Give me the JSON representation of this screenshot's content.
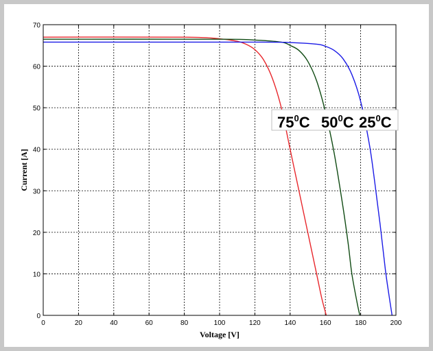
{
  "chart_data": {
    "type": "line",
    "title": "",
    "xlabel": "Voltage [V]",
    "ylabel": "Current [A]",
    "xlim": [
      0,
      200
    ],
    "ylim": [
      0,
      70
    ],
    "xticks": [
      0,
      20,
      40,
      60,
      80,
      100,
      120,
      140,
      160,
      180,
      200
    ],
    "yticks": [
      0,
      10,
      20,
      30,
      40,
      50,
      60,
      70
    ],
    "grid": true,
    "legend": "none",
    "annotations": [
      {
        "text": "75",
        "sup": "0",
        "unit": "C"
      },
      {
        "text": "50",
        "sup": "0",
        "unit": "C"
      },
      {
        "text": "25",
        "sup": "0",
        "unit": "C"
      }
    ],
    "series": [
      {
        "color": "#e8262b",
        "x": [
          0,
          80,
          100,
          110,
          115,
          120,
          125,
          130,
          135,
          140,
          145,
          150,
          155,
          158,
          160.5
        ],
        "y": [
          67.0,
          67.0,
          66.6,
          66.0,
          65.3,
          64.0,
          61.5,
          57.0,
          50.0,
          40.0,
          30.0,
          20.0,
          10.0,
          4.0,
          0
        ]
      },
      {
        "color": "#0f4a12",
        "x": [
          0,
          100,
          120,
          135,
          140,
          145,
          150,
          155,
          160,
          165,
          170,
          173,
          175,
          178,
          179.5
        ],
        "y": [
          66.5,
          66.5,
          66.3,
          65.8,
          65.0,
          63.8,
          61.2,
          56.5,
          49.0,
          39.0,
          26.0,
          17.0,
          10.0,
          3.0,
          0
        ]
      },
      {
        "color": "#1a1ae6",
        "x": [
          0,
          120,
          140,
          155,
          160,
          165,
          170,
          175,
          180,
          185,
          188,
          191,
          194,
          196,
          197.8
        ],
        "y": [
          65.8,
          65.8,
          65.7,
          65.3,
          64.8,
          63.8,
          61.8,
          58.0,
          51.5,
          41.0,
          32.0,
          22.0,
          11.0,
          5.0,
          0
        ]
      }
    ]
  }
}
